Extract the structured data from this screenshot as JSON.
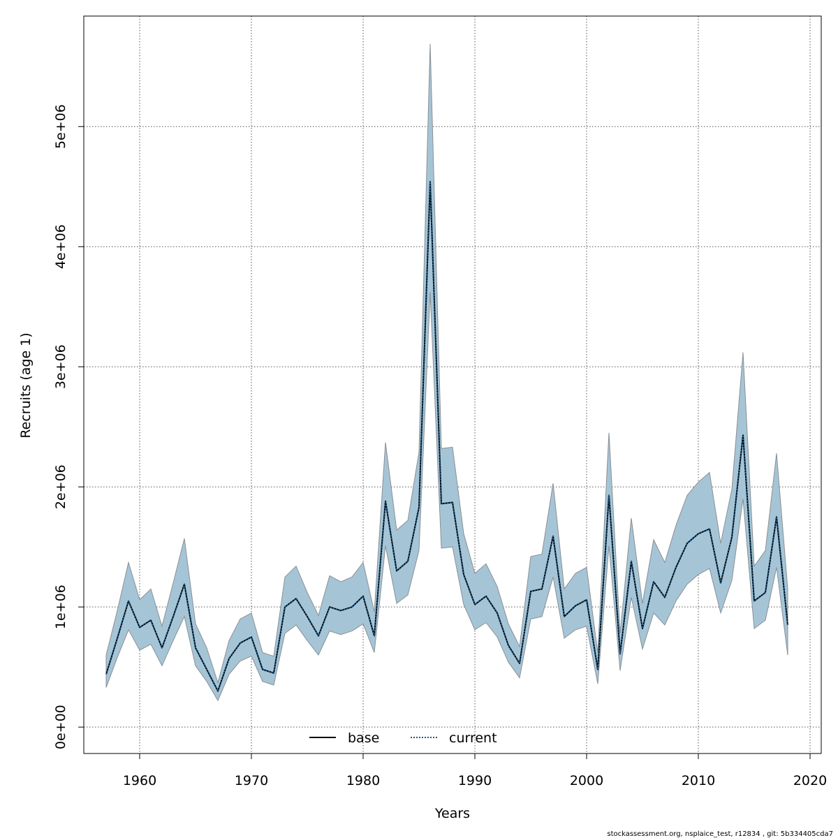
{
  "chart_data": {
    "type": "line",
    "title": "",
    "xlabel": "Years",
    "ylabel": "Recruits (age 1)",
    "xlim": [
      1955,
      2021
    ],
    "ylim": [
      -220000,
      5920000
    ],
    "grid": true,
    "x_ticks": [
      1960,
      1970,
      1980,
      1990,
      2000,
      2010,
      2020
    ],
    "x_tick_labels": [
      "1960",
      "1970",
      "1980",
      "1990",
      "2000",
      "2010",
      "2020"
    ],
    "y_ticks": [
      0,
      1000000,
      2000000,
      3000000,
      4000000,
      5000000
    ],
    "y_tick_labels": [
      "0e+00",
      "1e+06",
      "2e+06",
      "3e+06",
      "4e+06",
      "5e+06"
    ],
    "band_color": "#a5c5d6",
    "band_edge_color": "#8a8f94",
    "x": [
      1957,
      1958,
      1959,
      1960,
      1961,
      1962,
      1963,
      1964,
      1965,
      1966,
      1967,
      1968,
      1969,
      1970,
      1971,
      1972,
      1973,
      1974,
      1975,
      1976,
      1977,
      1978,
      1979,
      1980,
      1981,
      1982,
      1983,
      1984,
      1985,
      1986,
      1987,
      1988,
      1989,
      1990,
      1991,
      1992,
      1993,
      1994,
      1995,
      1996,
      1997,
      1998,
      1999,
      2000,
      2001,
      2002,
      2003,
      2004,
      2005,
      2006,
      2007,
      2008,
      2009,
      2010,
      2011,
      2012,
      2013,
      2014,
      2015,
      2016,
      2017,
      2018
    ],
    "series": [
      {
        "name": "base",
        "style": "solid",
        "color": "#000000",
        "values": [
          440000,
          740000,
          1050000,
          830000,
          890000,
          660000,
          920000,
          1190000,
          660000,
          480000,
          300000,
          570000,
          700000,
          750000,
          480000,
          450000,
          1000000,
          1070000,
          920000,
          760000,
          1000000,
          970000,
          1000000,
          1090000,
          760000,
          1880000,
          1300000,
          1380000,
          1830000,
          4540000,
          1860000,
          1870000,
          1270000,
          1020000,
          1090000,
          950000,
          680000,
          530000,
          1130000,
          1150000,
          1590000,
          920000,
          1010000,
          1060000,
          480000,
          1930000,
          610000,
          1380000,
          820000,
          1210000,
          1080000,
          1330000,
          1530000,
          1610000,
          1650000,
          1200000,
          1580000,
          2430000,
          1050000,
          1120000,
          1750000,
          850000
        ]
      },
      {
        "name": "current",
        "style": "dotted",
        "color": "#1f5a8a",
        "values": [
          440000,
          740000,
          1050000,
          830000,
          890000,
          660000,
          920000,
          1190000,
          660000,
          480000,
          300000,
          570000,
          700000,
          750000,
          480000,
          450000,
          1000000,
          1070000,
          920000,
          760000,
          1000000,
          970000,
          1000000,
          1090000,
          760000,
          1880000,
          1300000,
          1380000,
          1830000,
          4540000,
          1860000,
          1870000,
          1270000,
          1020000,
          1090000,
          950000,
          680000,
          530000,
          1130000,
          1150000,
          1590000,
          920000,
          1010000,
          1060000,
          480000,
          1930000,
          610000,
          1380000,
          820000,
          1210000,
          1080000,
          1330000,
          1530000,
          1610000,
          1650000,
          1200000,
          1580000,
          2430000,
          1050000,
          1120000,
          1750000,
          850000
        ]
      }
    ],
    "band_upper": [
      600000,
      970000,
      1370000,
      1060000,
      1150000,
      840000,
      1200000,
      1570000,
      860000,
      660000,
      370000,
      720000,
      900000,
      950000,
      620000,
      590000,
      1250000,
      1340000,
      1120000,
      930000,
      1260000,
      1210000,
      1250000,
      1370000,
      960000,
      2370000,
      1640000,
      1720000,
      2290000,
      5690000,
      2320000,
      2330000,
      1610000,
      1280000,
      1360000,
      1170000,
      860000,
      670000,
      1420000,
      1440000,
      2030000,
      1150000,
      1280000,
      1330000,
      620000,
      2450000,
      780000,
      1740000,
      1030000,
      1560000,
      1370000,
      1680000,
      1930000,
      2040000,
      2120000,
      1530000,
      1980000,
      3120000,
      1340000,
      1470000,
      2280000,
      1150000
    ],
    "band_lower": [
      330000,
      580000,
      810000,
      640000,
      690000,
      510000,
      720000,
      920000,
      510000,
      380000,
      220000,
      440000,
      550000,
      590000,
      380000,
      350000,
      780000,
      850000,
      720000,
      600000,
      800000,
      770000,
      800000,
      860000,
      620000,
      1510000,
      1030000,
      1100000,
      1470000,
      3620000,
      1490000,
      1500000,
      1020000,
      810000,
      870000,
      750000,
      540000,
      410000,
      900000,
      920000,
      1250000,
      740000,
      810000,
      840000,
      360000,
      1510000,
      470000,
      1080000,
      650000,
      950000,
      850000,
      1050000,
      1190000,
      1270000,
      1320000,
      950000,
      1220000,
      1900000,
      820000,
      890000,
      1330000,
      600000
    ]
  },
  "legend": {
    "items": [
      {
        "label": "base",
        "style": "solid"
      },
      {
        "label": "current",
        "style": "dotted"
      }
    ]
  },
  "footer": {
    "text": "stockassessment.org, nsplaice_test, r12834 , git: 5b334405cda7"
  }
}
